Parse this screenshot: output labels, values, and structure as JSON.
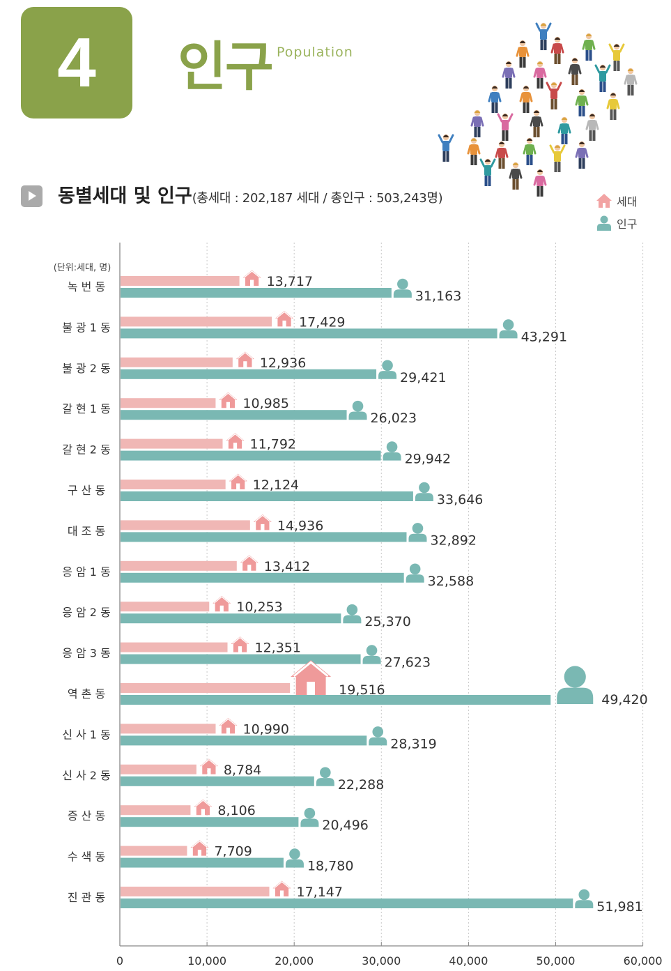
{
  "chapter": {
    "number": "4",
    "title": "인구",
    "subtitle": "Population"
  },
  "section": {
    "title": "동별세대 및 인구",
    "subtitle": "(총세대 : 202,187 세대 / 총인구 : 503,243명)"
  },
  "colors": {
    "households": "#f0b7b5",
    "population": "#7ab8b3",
    "accent": "#8aa24a",
    "house_icon": "#ef9a9a"
  },
  "legend": {
    "households": "세대",
    "population": "인구"
  },
  "chart_data": {
    "type": "bar",
    "orientation": "horizontal",
    "unit_label": "(단위:세대, 명)",
    "categories": [
      "녹 번 동",
      "불 광 1 동",
      "불 광 2 동",
      "갈 현 1 동",
      "갈 현 2 동",
      "구 산 동",
      "대 조 동",
      "응 암 1 동",
      "응 암 2 동",
      "응 암 3 동",
      "역 촌 동",
      "신 사 1 동",
      "신 사 2 동",
      "증 산 동",
      "수 색 동",
      "진 관 동"
    ],
    "series": [
      {
        "name": "세대",
        "values": [
          13717,
          17429,
          12936,
          10985,
          11792,
          12124,
          14936,
          13412,
          10253,
          12351,
          19516,
          10990,
          8784,
          8106,
          7709,
          17147
        ],
        "labels": [
          "13,717",
          "17,429",
          "12,936",
          "10,985",
          "11,792",
          "12,124",
          "14,936",
          "13,412",
          "10,253",
          "12,351",
          "19,516",
          "10,990",
          "8,784",
          "8,106",
          "7,709",
          "17,147"
        ]
      },
      {
        "name": "인구",
        "values": [
          31163,
          43291,
          29421,
          26023,
          29942,
          33646,
          32892,
          32588,
          25370,
          27623,
          49420,
          28319,
          22288,
          20496,
          18780,
          51981
        ],
        "labels": [
          "31,163",
          "43,291",
          "29,421",
          "26,023",
          "29,942",
          "33,646",
          "32,892",
          "32,588",
          "25,370",
          "27,623",
          "49,420",
          "28,319",
          "22,288",
          "20,496",
          "18,780",
          "51,981"
        ]
      }
    ],
    "xlim": [
      0,
      60000
    ],
    "xticks": [
      0,
      10000,
      20000,
      30000,
      40000,
      50000,
      60000
    ],
    "xtick_labels": [
      "0",
      "10,000",
      "20,000",
      "30,000",
      "40,000",
      "50,000",
      "60,000"
    ],
    "grid": true
  }
}
